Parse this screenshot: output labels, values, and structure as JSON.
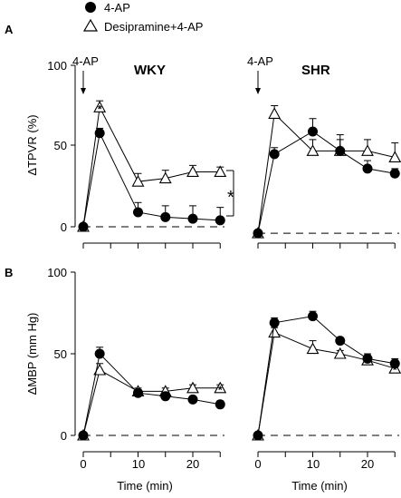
{
  "figure": {
    "legend": {
      "items": [
        {
          "label": "4-AP",
          "marker": "filled-circle"
        },
        {
          "label": "Desipramine+4-AP",
          "marker": "open-triangle"
        }
      ]
    }
  },
  "chart_data": [
    {
      "panel": "A",
      "subpanel": "WKY",
      "type": "line",
      "ylabel": "ΔTPVR (%)",
      "ylim": [
        0,
        100
      ],
      "yticks": [
        "0",
        "50",
        "100"
      ],
      "xlim": [
        -1,
        25
      ],
      "x_ticks_shown": false,
      "treatment_annotation": "4-AP",
      "significance_mark": "*",
      "series": [
        {
          "name": "4-AP",
          "x": [
            0,
            3,
            10,
            15,
            20,
            25
          ],
          "y": [
            0,
            58,
            9,
            6,
            5,
            4
          ],
          "err": [
            0,
            3,
            6,
            7,
            8,
            8
          ],
          "asterisk_points": [
            1
          ]
        },
        {
          "name": "Desipramine+4-AP",
          "x": [
            0,
            3,
            10,
            15,
            20,
            25
          ],
          "y": [
            0,
            74,
            28,
            30,
            34,
            34
          ],
          "err": [
            0,
            4,
            5,
            5,
            4,
            3
          ],
          "asterisk_points": [
            1
          ]
        }
      ]
    },
    {
      "panel": "A",
      "subpanel": "SHR",
      "type": "line",
      "ylim": [
        0,
        100
      ],
      "xlim": [
        -1,
        25
      ],
      "x_ticks_shown": false,
      "treatment_annotation": "4-AP",
      "series": [
        {
          "name": "4-AP",
          "x": [
            0,
            3,
            10,
            15,
            20,
            25
          ],
          "y": [
            -4,
            45,
            59,
            47,
            36,
            33
          ],
          "err": [
            0,
            4,
            8,
            7,
            5,
            3
          ],
          "asterisk_points": [
            1,
            5
          ]
        },
        {
          "name": "Desipramine+4-AP",
          "x": [
            0,
            3,
            10,
            15,
            20,
            25
          ],
          "y": [
            -4,
            70,
            47,
            47,
            47,
            43
          ],
          "err": [
            0,
            5,
            7,
            10,
            7,
            9
          ],
          "asterisk_points": []
        }
      ]
    },
    {
      "panel": "B",
      "subpanel": "WKY",
      "type": "line",
      "ylabel": "ΔMBP (mm Hg)",
      "xlabel": "Time (min)",
      "ylim": [
        0,
        100
      ],
      "yticks": [
        "0",
        "50",
        "100"
      ],
      "xticks": [
        "0",
        "10",
        "20"
      ],
      "series": [
        {
          "name": "4-AP",
          "x": [
            0,
            3,
            10,
            15,
            20,
            25
          ],
          "y": [
            0,
            50,
            26,
            24,
            22,
            19
          ],
          "err": [
            0,
            4,
            2,
            2,
            2,
            2
          ],
          "asterisk_points": [
            1,
            5
          ]
        },
        {
          "name": "Desipramine+4-AP",
          "x": [
            0,
            3,
            10,
            15,
            20,
            25
          ],
          "y": [
            0,
            40,
            27,
            27,
            29,
            29
          ],
          "err": [
            0,
            4,
            2,
            2,
            2,
            2
          ],
          "asterisk_points": [
            5
          ]
        }
      ]
    },
    {
      "panel": "B",
      "subpanel": "SHR",
      "type": "line",
      "xlabel": "Time (min)",
      "ylim": [
        0,
        100
      ],
      "xticks": [
        "0",
        "10",
        "20"
      ],
      "series": [
        {
          "name": "4-AP",
          "x": [
            0,
            3,
            10,
            15,
            20,
            25
          ],
          "y": [
            0,
            69,
            73,
            58,
            47,
            44
          ],
          "err": [
            0,
            3,
            3,
            2,
            3,
            3
          ],
          "asterisk_points": []
        },
        {
          "name": "Desipramine+4-AP",
          "x": [
            0,
            3,
            10,
            15,
            20,
            25
          ],
          "y": [
            0,
            63,
            53,
            50,
            46,
            41
          ],
          "err": [
            0,
            3,
            5,
            2,
            3,
            3
          ],
          "asterisk_points": [
            5
          ]
        }
      ]
    }
  ]
}
